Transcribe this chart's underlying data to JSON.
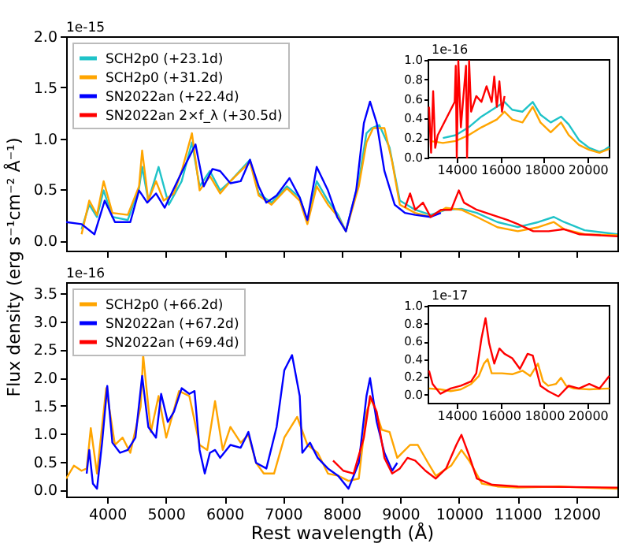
{
  "chart_data": [
    {
      "type": "line",
      "ylabel": "Flux density (erg s⁻¹cm⁻² Å⁻¹)",
      "annotations": [
        "1e-15"
      ],
      "legend": "top left",
      "tick_labels": "y",
      "xlim": [
        3300,
        12700
      ],
      "xticks": [
        4000,
        5000,
        6000,
        7000,
        8000,
        9000,
        10000,
        11000,
        12000
      ],
      "ylim": [
        -0.1,
        2.0
      ],
      "yticks": [
        {
          "value": 0,
          "label": "0.0"
        },
        0.5,
        {
          "value": 1,
          "label": "1.0"
        },
        1.5,
        {
          "value": 2,
          "label": "2.0"
        }
      ],
      "series": [
        {
          "name": "SCH2p0 (+23.1d)",
          "color": "#1fc3c8",
          "x": [
            3563,
            3694,
            3826,
            3939,
            4088,
            4351,
            4543,
            4596,
            4701,
            4876,
            5051,
            5270,
            5445,
            5576,
            5751,
            5926,
            6101,
            6434,
            6583,
            6802,
            7064,
            7283,
            7414,
            7572,
            7764,
            7939,
            8070,
            8290,
            8421,
            8508,
            8640,
            8815,
            8990,
            9252,
            9515,
            9778,
            10040,
            10303,
            10653,
            11003,
            11353,
            11616,
            11791,
            12141,
            12700
          ],
          "values": [
            0.11,
            0.35,
            0.23,
            0.49,
            0.23,
            0.2,
            0.51,
            0.72,
            0.39,
            0.72,
            0.35,
            0.58,
            0.96,
            0.53,
            0.68,
            0.49,
            0.58,
            0.79,
            0.46,
            0.37,
            0.53,
            0.42,
            0.18,
            0.58,
            0.39,
            0.25,
            0.09,
            0.58,
            1.05,
            1.1,
            1.13,
            0.91,
            0.39,
            0.3,
            0.25,
            0.3,
            0.31,
            0.27,
            0.18,
            0.13,
            0.18,
            0.23,
            0.18,
            0.1,
            0.06
          ]
        },
        {
          "name": "SCH2p0 (+31.2d)",
          "color": "#ffa500",
          "x": [
            3563,
            3694,
            3826,
            3939,
            4088,
            4351,
            4543,
            4596,
            4701,
            4832,
            4963,
            5138,
            5270,
            5445,
            5576,
            5751,
            5926,
            6101,
            6434,
            6583,
            6802,
            7064,
            7283,
            7414,
            7572,
            7764,
            7939,
            8070,
            8290,
            8421,
            8535,
            8727,
            8859,
            8990,
            9252,
            9515,
            9778,
            10040,
            10303,
            10653,
            11003,
            11353,
            11616,
            11791,
            12141,
            12700
          ],
          "values": [
            0.06,
            0.39,
            0.25,
            0.58,
            0.27,
            0.25,
            0.53,
            0.88,
            0.39,
            0.58,
            0.39,
            0.46,
            0.68,
            1.05,
            0.49,
            0.63,
            0.46,
            0.58,
            0.77,
            0.44,
            0.35,
            0.51,
            0.39,
            0.16,
            0.53,
            0.35,
            0.23,
            0.09,
            0.53,
            0.96,
            1.1,
            1.1,
            0.77,
            0.35,
            0.27,
            0.23,
            0.32,
            0.3,
            0.23,
            0.13,
            0.09,
            0.13,
            0.18,
            0.11,
            0.06,
            0.05
          ]
        },
        {
          "name": "SN2022an (+22.4d)",
          "color": "#0000ff",
          "x": [
            3300,
            3563,
            3782,
            3957,
            4132,
            4394,
            4543,
            4683,
            4832,
            4981,
            5138,
            5314,
            5506,
            5646,
            5795,
            5926,
            6101,
            6276,
            6434,
            6583,
            6714,
            6889,
            7108,
            7283,
            7414,
            7572,
            7764,
            7922,
            8070,
            8246,
            8377,
            8482,
            8596,
            8727,
            8902,
            9077,
            9252,
            9515,
            9690
          ],
          "values": [
            0.18,
            0.16,
            0.06,
            0.39,
            0.18,
            0.18,
            0.49,
            0.37,
            0.46,
            0.32,
            0.51,
            0.72,
            0.94,
            0.53,
            0.7,
            0.68,
            0.56,
            0.58,
            0.79,
            0.53,
            0.37,
            0.44,
            0.61,
            0.42,
            0.2,
            0.72,
            0.49,
            0.23,
            0.09,
            0.49,
            1.15,
            1.36,
            1.15,
            0.68,
            0.35,
            0.27,
            0.25,
            0.23,
            0.27
          ]
        },
        {
          "name": "SN2022an 2×f_λ (+30.5d)",
          "color": "#ff0000",
          "x": [
            9077,
            9165,
            9252,
            9384,
            9515,
            9690,
            9865,
            9996,
            10084,
            10303,
            10565,
            10828,
            11003,
            11266,
            11528,
            11791,
            12054,
            12403,
            12700
          ],
          "values": [
            0.32,
            0.46,
            0.3,
            0.37,
            0.23,
            0.3,
            0.3,
            0.49,
            0.37,
            0.3,
            0.25,
            0.2,
            0.16,
            0.09,
            0.09,
            0.11,
            0.06,
            0.05,
            0.04
          ]
        }
      ]
    },
    {
      "type": "line",
      "annotations": [
        "1e-16"
      ],
      "xlim": [
        12700,
        21000
      ],
      "xticks": [
        14000,
        16000,
        18000,
        20000
      ],
      "ylim": [
        0.0,
        1.0
      ],
      "yticks": [
        {
          "value": 0,
          "label": "0.0"
        },
        0.2,
        0.4,
        0.6,
        0.8,
        {
          "value": 1,
          "label": "1.0"
        }
      ],
      "series": [
        {
          "color": "#1fc3c8",
          "x": [
            13365,
            13953,
            14541,
            15129,
            15835,
            16188,
            16541,
            17012,
            17482,
            17835,
            18306,
            18777,
            19130,
            19600,
            20071,
            20541,
            20776,
            20990
          ],
          "values": [
            0.2,
            0.23,
            0.31,
            0.42,
            0.52,
            0.57,
            0.49,
            0.47,
            0.57,
            0.44,
            0.36,
            0.42,
            0.34,
            0.18,
            0.1,
            0.06,
            0.08,
            0.11
          ]
        },
        {
          "color": "#ffa500",
          "x": [
            12776,
            13365,
            13953,
            14541,
            15129,
            15835,
            16188,
            16541,
            17012,
            17482,
            17835,
            18306,
            18777,
            19130,
            19600,
            20071,
            20541,
            20990
          ],
          "values": [
            0.17,
            0.15,
            0.17,
            0.23,
            0.31,
            0.39,
            0.47,
            0.39,
            0.36,
            0.52,
            0.36,
            0.26,
            0.36,
            0.23,
            0.13,
            0.08,
            0.05,
            0.09
          ]
        },
        {
          "color": "#ff0000",
          "x": [
            12729,
            12824,
            12918,
            13012,
            13129,
            13906,
            13953,
            14000,
            14071,
            14188,
            14306,
            14424,
            14471,
            14565,
            14659,
            14894,
            15129,
            15365,
            15600,
            15718,
            15835,
            15953,
            16071,
            16188
          ],
          "values": [
            0.52,
            0.05,
            0.68,
            0.1,
            0.23,
            0.57,
            0.94,
            0.0,
            0.99,
            0.31,
            0.63,
            0.94,
            0.0,
            0.99,
            0.47,
            0.63,
            0.57,
            0.73,
            0.57,
            0.83,
            0.52,
            0.78,
            0.47,
            0.63
          ]
        }
      ]
    },
    {
      "type": "line",
      "xlabel": "Rest wavelength (Å)",
      "annotations": [
        "1e-16"
      ],
      "legend": "top left",
      "xlim": [
        3300,
        12700
      ],
      "xticks": [
        4000,
        5000,
        6000,
        7000,
        8000,
        9000,
        10000,
        11000,
        12000
      ],
      "ylim": [
        -0.12,
        3.7
      ],
      "yticks": [
        {
          "value": 0,
          "label": "0.0"
        },
        0.5,
        {
          "value": 1,
          "label": "1.0"
        },
        1.5,
        {
          "value": 2,
          "label": "2.0"
        },
        2.5,
        {
          "value": 3,
          "label": "3.0"
        },
        3.5
      ],
      "series": [
        {
          "name": "SCH2p0 (+66.2d)",
          "color": "#ffa500",
          "x": [
            3300,
            3432,
            3563,
            3650,
            3720,
            3826,
            3983,
            4132,
            4263,
            4394,
            4570,
            4613,
            4745,
            4876,
            5007,
            5226,
            5401,
            5576,
            5707,
            5839,
            5970,
            6101,
            6276,
            6408,
            6539,
            6670,
            6845,
            7020,
            7239,
            7414,
            7589,
            7764,
            7939,
            8114,
            8290,
            8421,
            8508,
            8684,
            8815,
            8946,
            9165,
            9296,
            9471,
            9603,
            9865,
            10040,
            10172,
            10390,
            10653,
            11003,
            11703,
            12141,
            12700
          ],
          "values": [
            0.2,
            0.43,
            0.34,
            0.38,
            1.1,
            0.29,
            1.81,
            0.8,
            0.93,
            0.66,
            1.48,
            2.4,
            1.03,
            1.67,
            0.93,
            1.76,
            1.67,
            0.8,
            0.71,
            1.58,
            0.71,
            1.12,
            0.84,
            0.98,
            0.48,
            0.29,
            0.29,
            0.93,
            1.3,
            0.8,
            0.66,
            0.29,
            0.25,
            0.16,
            0.2,
            1.39,
            1.62,
            1.07,
            1.03,
            0.57,
            0.8,
            0.8,
            0.48,
            0.25,
            0.43,
            0.71,
            0.52,
            0.11,
            0.06,
            0.04,
            0.06,
            0.04,
            0.02
          ]
        },
        {
          "name": "SN2022an (+67.2d)",
          "color": "#0000ff",
          "x": [
            3650,
            3694,
            3756,
            3826,
            3913,
            4001,
            4088,
            4219,
            4351,
            4482,
            4596,
            4701,
            4832,
            4920,
            5033,
            5138,
            5270,
            5401,
            5489,
            5576,
            5664,
            5751,
            5839,
            5926,
            6101,
            6276,
            6408,
            6539,
            6714,
            6889,
            7020,
            7152,
            7283,
            7327,
            7458,
            7589,
            7764,
            7939,
            8114,
            8290,
            8421,
            8482,
            8596,
            8727,
            8859,
            8946
          ],
          "values": [
            0.29,
            0.71,
            0.11,
            0.02,
            0.84,
            1.85,
            0.84,
            0.66,
            0.71,
            0.93,
            2.03,
            1.12,
            0.93,
            1.71,
            1.21,
            1.39,
            1.81,
            1.71,
            1.76,
            0.71,
            0.29,
            0.66,
            0.71,
            0.57,
            0.8,
            0.75,
            1.03,
            0.48,
            0.38,
            1.12,
            2.13,
            2.4,
            1.67,
            0.66,
            0.84,
            0.57,
            0.38,
            0.25,
            0.02,
            0.48,
            1.67,
            1.99,
            1.21,
            0.66,
            0.34,
            0.48
          ]
        },
        {
          "name": "SN2022an (+69.4d)",
          "color": "#ff0000",
          "x": [
            7852,
            8027,
            8202,
            8377,
            8482,
            8596,
            8727,
            8859,
            8990,
            9121,
            9252,
            9427,
            9603,
            9778,
            9953,
            10040,
            10172,
            10303,
            10565,
            11003,
            11878,
            12700
          ],
          "values": [
            0.52,
            0.34,
            0.29,
            0.93,
            1.67,
            1.39,
            0.57,
            0.29,
            0.38,
            0.57,
            0.52,
            0.34,
            0.2,
            0.38,
            0.8,
            0.98,
            0.61,
            0.2,
            0.09,
            0.06,
            0.05,
            0.04
          ]
        }
      ]
    },
    {
      "type": "line",
      "annotations": [
        "1e-17"
      ],
      "xlim": [
        12700,
        21000
      ],
      "xticks": [
        14000,
        16000,
        18000,
        20000
      ],
      "ylim": [
        -0.1,
        1.0
      ],
      "yticks": [
        {
          "value": 0,
          "label": "0.0"
        },
        0.2,
        0.4,
        0.6,
        0.8,
        {
          "value": 1,
          "label": "1.0"
        }
      ],
      "series": [
        {
          "color": "#ffa500",
          "x": [
            12729,
            13247,
            13718,
            14188,
            14659,
            15012,
            15247,
            15412,
            15600,
            16071,
            16541,
            17012,
            17365,
            17718,
            17953,
            18188,
            18541,
            18777,
            19012,
            19365,
            20071,
            20990
          ],
          "values": [
            0.07,
            0.06,
            0.04,
            0.06,
            0.12,
            0.21,
            0.35,
            0.4,
            0.24,
            0.24,
            0.23,
            0.27,
            0.21,
            0.35,
            0.15,
            0.1,
            0.12,
            0.19,
            0.1,
            0.07,
            0.06,
            0.07
          ]
        },
        {
          "color": "#ff0000",
          "x": [
            12729,
            12894,
            13247,
            13718,
            14188,
            14659,
            14894,
            15129,
            15318,
            15482,
            15718,
            15953,
            16188,
            16541,
            16894,
            17247,
            17482,
            17835,
            18188,
            18659,
            19130,
            19600,
            20071,
            20541,
            20990
          ],
          "values": [
            0.27,
            0.12,
            0.01,
            0.07,
            0.1,
            0.15,
            0.24,
            0.63,
            0.86,
            0.58,
            0.35,
            0.52,
            0.46,
            0.41,
            0.29,
            0.46,
            0.44,
            0.1,
            0.04,
            -0.02,
            0.1,
            0.07,
            0.12,
            0.07,
            0.21
          ]
        }
      ]
    }
  ]
}
